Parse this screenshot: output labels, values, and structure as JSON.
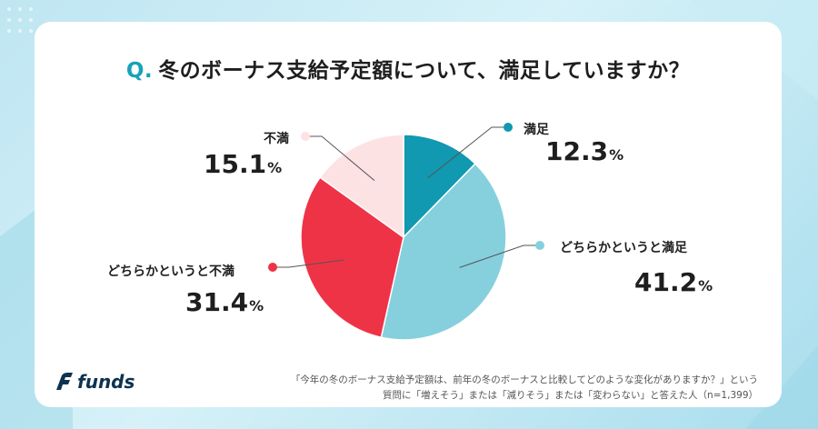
{
  "title": {
    "q_mark": "Q.",
    "text": "冬のボーナス支給予定額について、満足していますか？"
  },
  "colors": {
    "accent": "#17a2b8",
    "satisfied": "#1099b0",
    "somewhat_satisfied": "#86d0de",
    "somewhat_dissatisfied": "#ef3347",
    "dissatisfied": "#fde2e4"
  },
  "chart_data": {
    "type": "pie",
    "slices": [
      {
        "label": "満足",
        "value": 12.3,
        "display": "12.3",
        "color": "#1099b0"
      },
      {
        "label": "どちらかというと満足",
        "value": 41.2,
        "display": "41.2",
        "color": "#86d0de"
      },
      {
        "label": "どちらかというと不満",
        "value": 31.4,
        "display": "31.4",
        "color": "#ef3347"
      },
      {
        "label": "不満",
        "value": 15.1,
        "display": "15.1",
        "color": "#fde2e4"
      }
    ],
    "unit": "%"
  },
  "footer": {
    "logo_text": "funds",
    "logo_icon": "funds-logo-icon",
    "note_line1": "「今年の冬のボーナス支給予定額は、前年の冬のボーナスと比較してどのような変化がありますか？」という",
    "note_line2": "質問に「増えそう」または「減りそう」または「変わらない」と答えた人（n=1,399）"
  }
}
